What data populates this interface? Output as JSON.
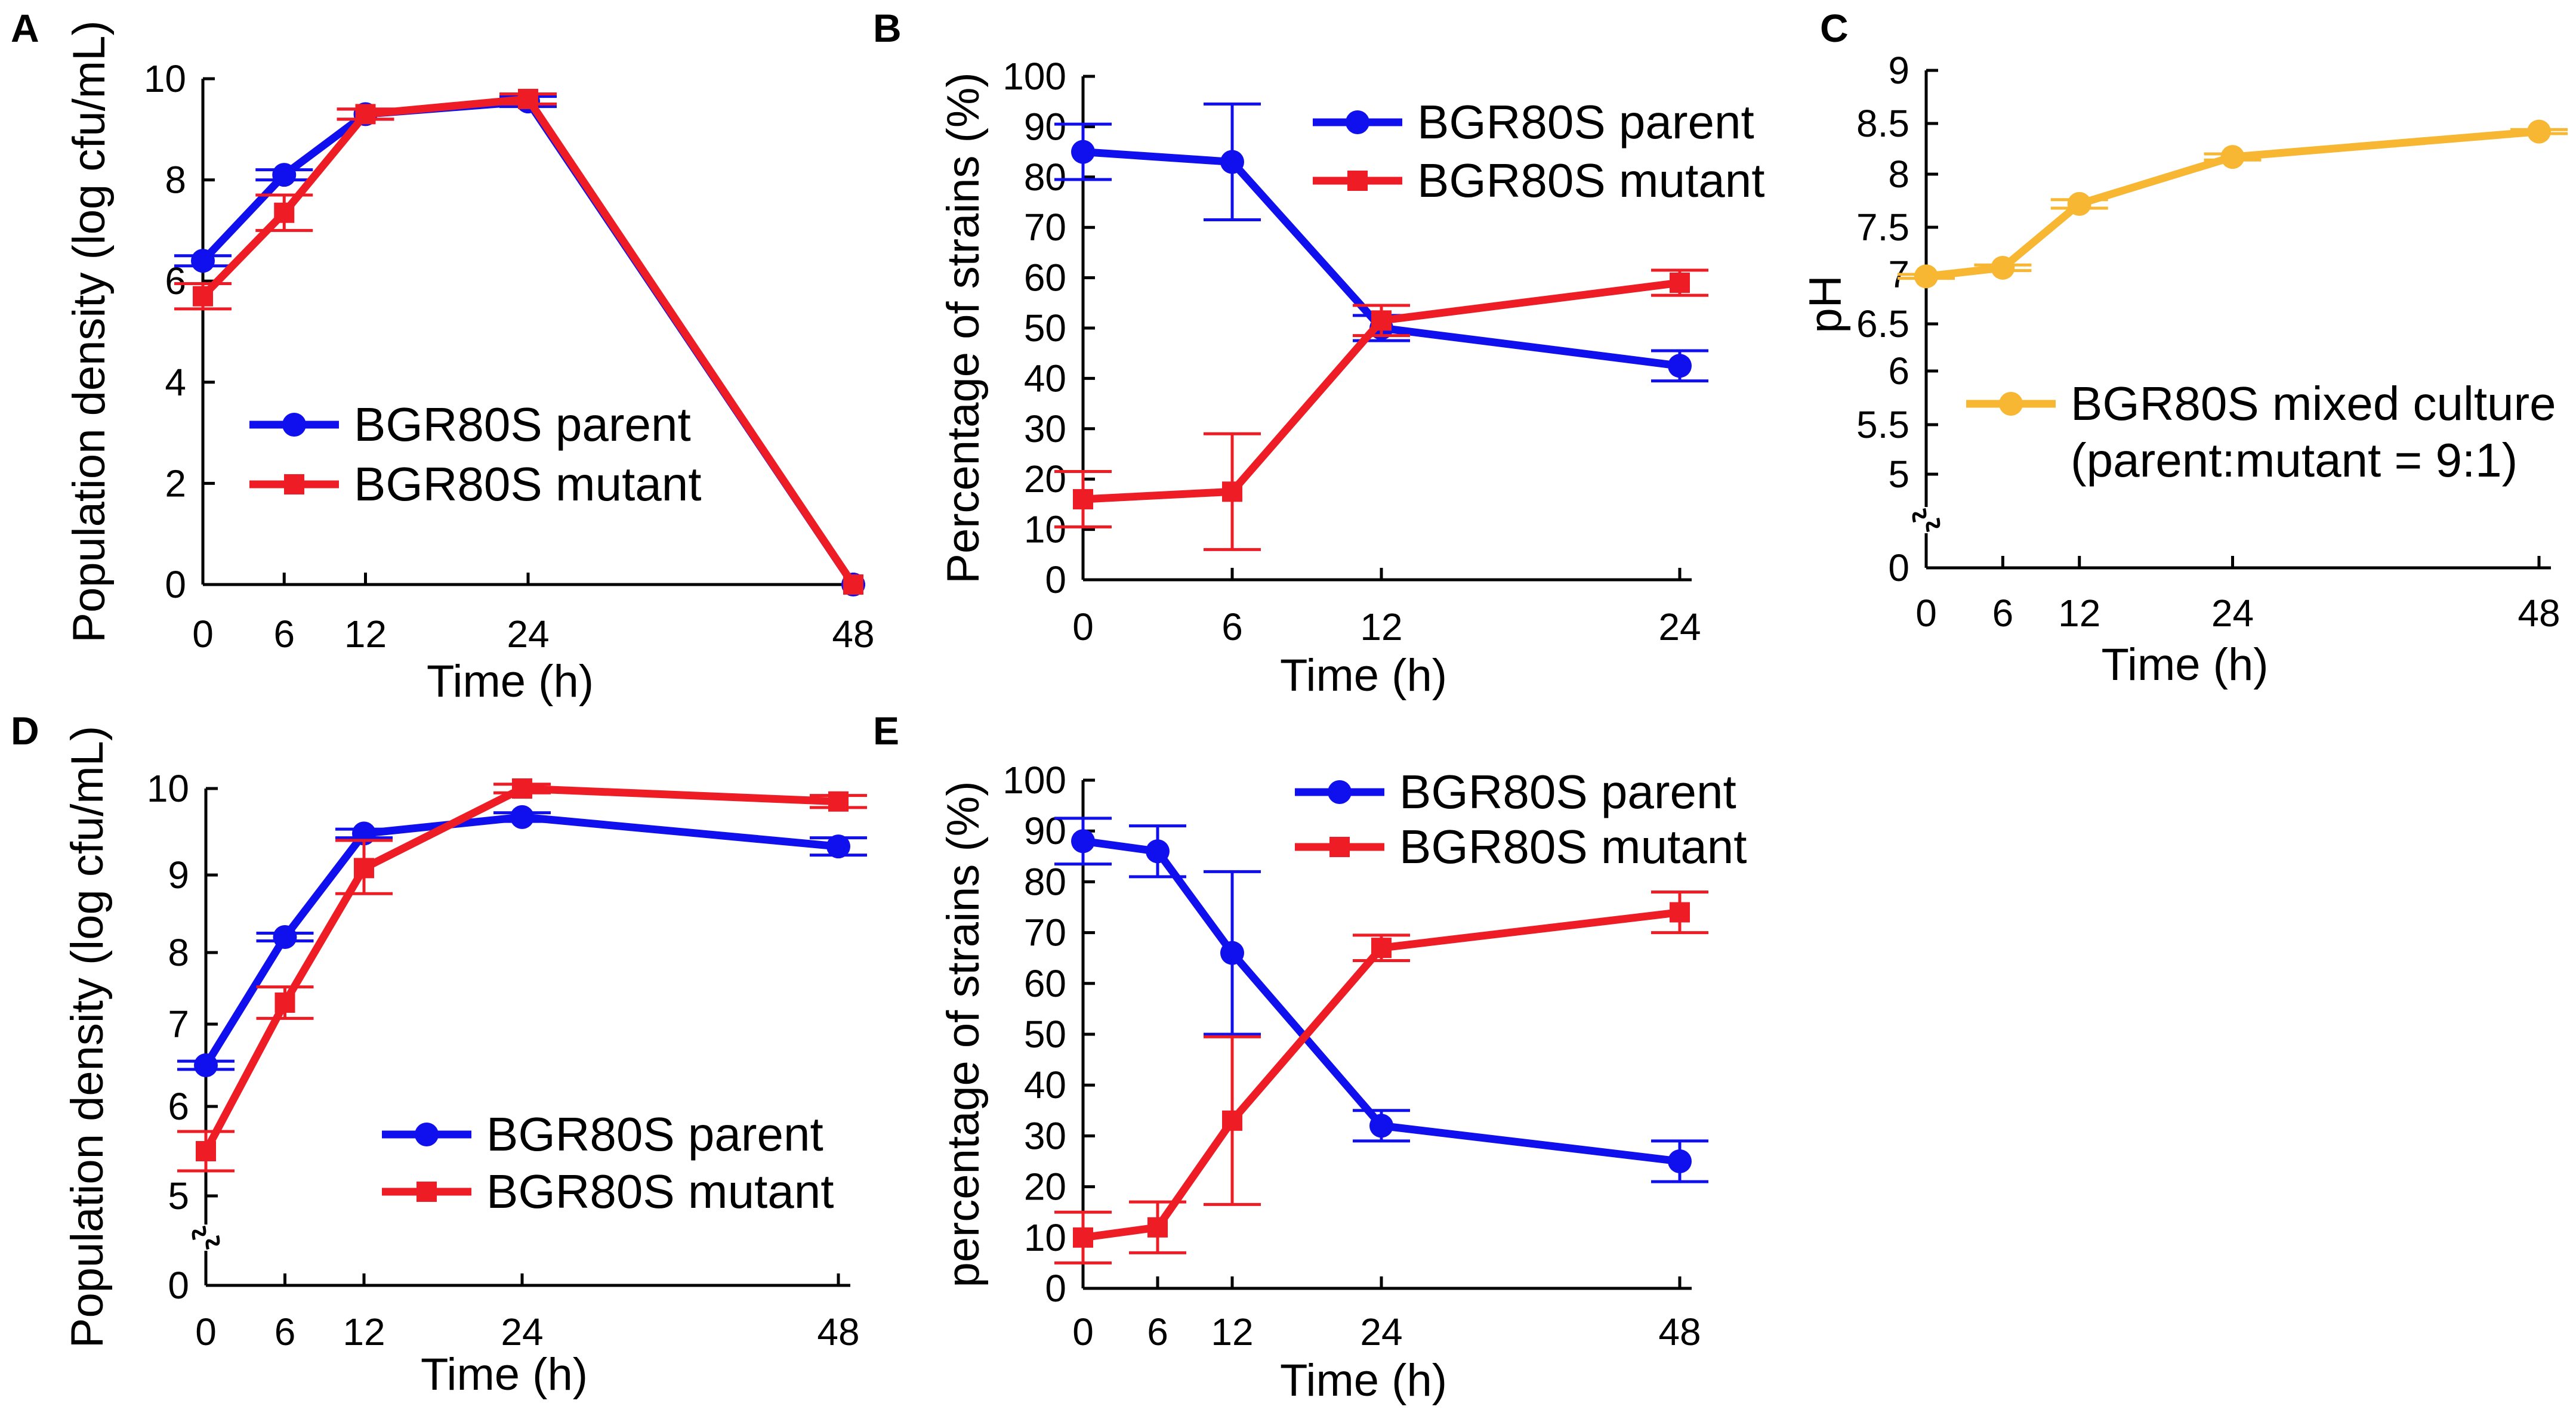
{
  "colors": {
    "parent": "#1010ee",
    "mutant": "#ee1c24",
    "mixed": "#f7b733",
    "axis": "#000000"
  },
  "chart_data": [
    {
      "panel": "A",
      "type": "line",
      "xlabel": "Time (h)",
      "ylabel": "Population density (log cfu/mL)",
      "xlim": [
        0,
        48
      ],
      "ylim": [
        0,
        10
      ],
      "xticks": [
        0,
        6,
        12,
        24,
        48
      ],
      "yticks": [
        0,
        2,
        4,
        6,
        8,
        10
      ],
      "break_axis": false,
      "legend_position": "center-left",
      "series": [
        {
          "name": "BGR80S parent",
          "color": "#1010ee",
          "marker": "circle",
          "x": [
            0,
            6,
            12,
            24,
            48
          ],
          "y": [
            6.4,
            8.1,
            9.3,
            9.55,
            0
          ],
          "err": [
            0.1,
            0.1,
            0.1,
            0.1,
            0
          ]
        },
        {
          "name": "BGR80S mutant",
          "color": "#ee1c24",
          "marker": "square",
          "x": [
            0,
            6,
            12,
            24,
            48
          ],
          "y": [
            5.7,
            7.35,
            9.3,
            9.6,
            0
          ],
          "err": [
            0.25,
            0.35,
            0.1,
            0.1,
            0
          ]
        }
      ]
    },
    {
      "panel": "B",
      "type": "line",
      "xlabel": "Time (h)",
      "ylabel": "Percentage of strains (%)",
      "xlim": [
        0,
        24
      ],
      "ylim": [
        0,
        100
      ],
      "xticks": [
        0,
        6,
        12,
        24
      ],
      "yticks": [
        0,
        10,
        20,
        30,
        40,
        50,
        60,
        70,
        80,
        90,
        100
      ],
      "break_axis": false,
      "legend_position": "top-right",
      "series": [
        {
          "name": "BGR80S parent",
          "color": "#1010ee",
          "marker": "circle",
          "x": [
            0,
            6,
            12,
            24
          ],
          "y": [
            85,
            83,
            50,
            42.5
          ],
          "err": [
            5.5,
            11.5,
            2.5,
            3
          ]
        },
        {
          "name": "BGR80S mutant",
          "color": "#ee1c24",
          "marker": "square",
          "x": [
            0,
            6,
            12,
            24
          ],
          "y": [
            16,
            17.5,
            51.5,
            59
          ],
          "err": [
            5.5,
            11.5,
            3,
            2.5
          ]
        }
      ]
    },
    {
      "panel": "C",
      "type": "line",
      "xlabel": "Time (h)",
      "ylabel": "pH",
      "xlim": [
        0,
        48
      ],
      "ylim": [
        0,
        9
      ],
      "xticks": [
        0,
        6,
        12,
        24,
        48
      ],
      "yticks": [
        "0",
        "5",
        "5.5",
        "6",
        "6.5",
        "7",
        "7.5",
        "8",
        "8.5",
        "9"
      ],
      "break_axis": true,
      "legend_position": "center-right",
      "series": [
        {
          "name": "BGR80S mixed culture",
          "name_line2": "(parent:mutant = 9:1)",
          "color": "#f7b733",
          "marker": "circle",
          "x": [
            0,
            6,
            12,
            24,
            48
          ],
          "y": [
            6.98,
            7.07,
            7.72,
            8.17,
            8.42
          ],
          "err": [
            0.02,
            0.03,
            0.04,
            0.03,
            0.02
          ]
        }
      ]
    },
    {
      "panel": "D",
      "type": "line",
      "xlabel": "Time (h)",
      "ylabel": "Population density (log cfu/mL)",
      "xlim": [
        0,
        48
      ],
      "ylim": [
        0,
        10
      ],
      "xticks": [
        0,
        6,
        12,
        24,
        48
      ],
      "yticks": [
        "0",
        "5",
        "6",
        "7",
        "8",
        "9",
        "10"
      ],
      "break_axis": true,
      "legend_position": "bottom-right",
      "series": [
        {
          "name": "BGR80S parent",
          "color": "#1010ee",
          "marker": "circle",
          "x": [
            0,
            6,
            12,
            24,
            48
          ],
          "y": [
            6.5,
            8.2,
            9.48,
            9.67,
            9.33
          ],
          "err": [
            0.05,
            0.05,
            0.05,
            0.05,
            0.1
          ]
        },
        {
          "name": "BGR80S mutant",
          "color": "#ee1c24",
          "marker": "square",
          "x": [
            0,
            6,
            12,
            24,
            48
          ],
          "y": [
            5.5,
            7.3,
            9.08,
            10.0,
            9.85
          ],
          "err": [
            0.22,
            0.22,
            0.32,
            0.05,
            0.07
          ]
        }
      ]
    },
    {
      "panel": "E",
      "type": "line",
      "xlabel": "Time (h)",
      "ylabel": "percentage of strains (%)",
      "xlim": [
        0,
        48
      ],
      "ylim": [
        0,
        100
      ],
      "xticks": [
        0,
        6,
        12,
        24,
        48
      ],
      "yticks": [
        0,
        10,
        20,
        30,
        40,
        50,
        60,
        70,
        80,
        90,
        100
      ],
      "break_axis": false,
      "legend_position": "top-center",
      "series": [
        {
          "name": "BGR80S parent",
          "color": "#1010ee",
          "marker": "circle",
          "x": [
            0,
            6,
            12,
            24,
            48
          ],
          "y": [
            88,
            86,
            66,
            32,
            25
          ],
          "err": [
            4.5,
            5,
            16,
            3,
            4
          ]
        },
        {
          "name": "BGR80S mutant",
          "color": "#ee1c24",
          "marker": "square",
          "x": [
            0,
            6,
            12,
            24,
            48
          ],
          "y": [
            10,
            12,
            33,
            67,
            74
          ],
          "err": [
            5,
            5,
            16.5,
            2.5,
            4
          ]
        }
      ]
    }
  ]
}
